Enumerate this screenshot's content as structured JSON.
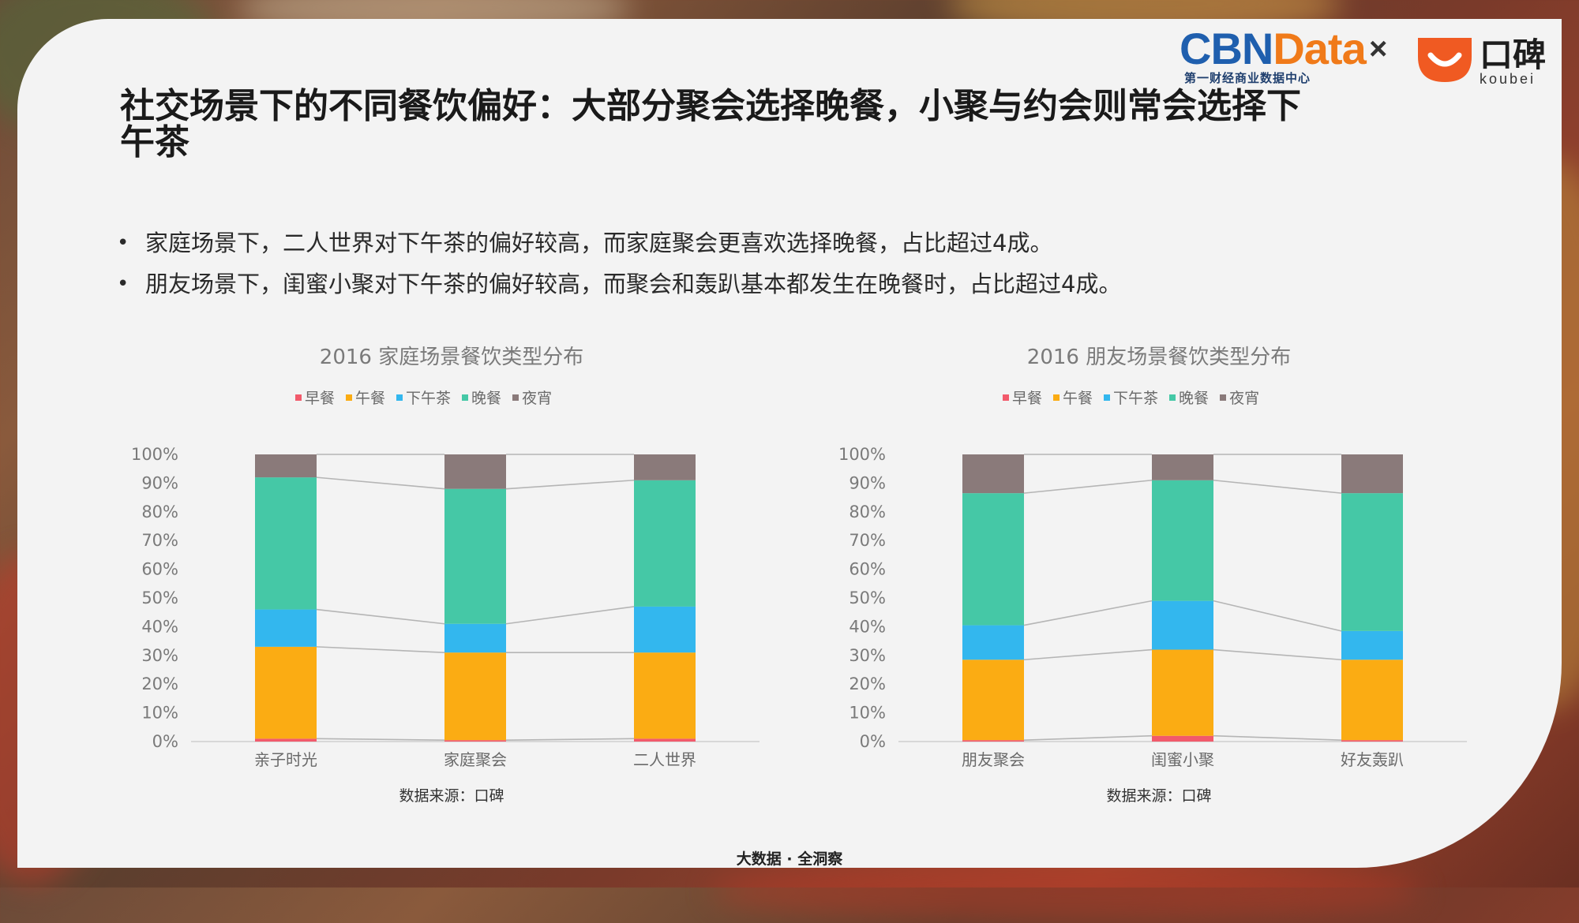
{
  "header": {
    "logo_cbn_part1": "CBN",
    "logo_cbn_part2": "Data",
    "logo_cbn_sub": "第一财经商业数据中心",
    "times": "×",
    "koubei_cn": "口碑",
    "koubei_en": "koubei"
  },
  "title": "社交场景下的不同餐饮偏好：大部分聚会选择晚餐，小聚与约会则常会选择下午茶",
  "bullets": [
    "家庭场景下，二人世界对下午茶的偏好较高，而家庭聚会更喜欢选择晚餐，占比超过4成。",
    "朋友场景下，闺蜜小聚对下午茶的偏好较高，而聚会和轰趴基本都发生在晚餐时，占比超过4成。"
  ],
  "bullet_symbol": "•",
  "colors": {
    "breakfast": "#f25a6b",
    "lunch": "#fbac13",
    "tea": "#33b7ee",
    "dinner": "#45c8a6",
    "night": "#8a7a7a"
  },
  "source_label": "数据来源：口碑",
  "footer": "大数据 · 全洞察",
  "chart_data": [
    {
      "type": "bar",
      "stacked": true,
      "title": "2016 家庭场景餐饮类型分布",
      "categories": [
        "亲子时光",
        "家庭聚会",
        "二人世界"
      ],
      "series": [
        {
          "name": "早餐",
          "values": [
            1,
            0.5,
            1
          ]
        },
        {
          "name": "午餐",
          "values": [
            32,
            30.5,
            30
          ]
        },
        {
          "name": "下午茶",
          "values": [
            13,
            10,
            16
          ]
        },
        {
          "name": "晚餐",
          "values": [
            46,
            47,
            44
          ]
        },
        {
          "name": "夜宵",
          "values": [
            8,
            12,
            9
          ]
        }
      ],
      "yticks": [
        "0%",
        "10%",
        "20%",
        "30%",
        "40%",
        "50%",
        "60%",
        "70%",
        "80%",
        "90%",
        "100%"
      ],
      "ylim": [
        0,
        100
      ],
      "legend_position": "top"
    },
    {
      "type": "bar",
      "stacked": true,
      "title": "2016 朋友场景餐饮类型分布",
      "categories": [
        "朋友聚会",
        "闺蜜小聚",
        "好友轰趴"
      ],
      "series": [
        {
          "name": "早餐",
          "values": [
            0.5,
            2,
            0.5
          ]
        },
        {
          "name": "午餐",
          "values": [
            28,
            30,
            28
          ]
        },
        {
          "name": "下午茶",
          "values": [
            12,
            17,
            10
          ]
        },
        {
          "name": "晚餐",
          "values": [
            46,
            42,
            48
          ]
        },
        {
          "name": "夜宵",
          "values": [
            13.5,
            9,
            13.5
          ]
        }
      ],
      "yticks": [
        "0%",
        "10%",
        "20%",
        "30%",
        "40%",
        "50%",
        "60%",
        "70%",
        "80%",
        "90%",
        "100%"
      ],
      "ylim": [
        0,
        100
      ],
      "legend_position": "top"
    }
  ]
}
